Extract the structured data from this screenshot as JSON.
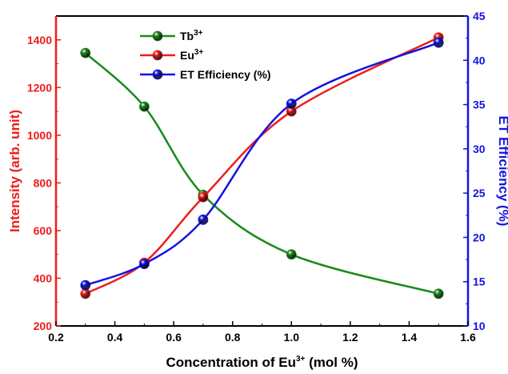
{
  "chart_data": {
    "type": "line",
    "x": [
      0.3,
      0.5,
      0.7,
      1.0,
      1.5
    ],
    "xlim": [
      0.2,
      1.6
    ],
    "x_ticks": [
      "0.2",
      "0.4",
      "0.6",
      "0.8",
      "1.0",
      "1.2",
      "1.4",
      "1.6"
    ],
    "xlabel_main": "Concentration of Eu",
    "xlabel_sup": "3+",
    "xlabel_tail": " (mol %)",
    "ylabel_left": "Intensity (arb. unit)",
    "ylim_left": [
      200,
      1500
    ],
    "y_ticks_left": [
      "200",
      "400",
      "600",
      "800",
      "1000",
      "1200",
      "1400"
    ],
    "ylabel_right": "ET Efficiency (%)",
    "ylim_right": [
      10,
      45
    ],
    "y_ticks_right": [
      "10",
      "15",
      "20",
      "25",
      "30",
      "35",
      "40",
      "45"
    ],
    "legend_position": "top-left",
    "series": [
      {
        "name": "Tb",
        "name_sup": "3+",
        "axis": "left",
        "color": "#1a8a1a",
        "values": [
          1345,
          1120,
          750,
          500,
          335
        ]
      },
      {
        "name": "Eu",
        "name_sup": "3+",
        "axis": "left",
        "color": "#ee1c1c",
        "values": [
          335,
          465,
          740,
          1100,
          1410
        ]
      },
      {
        "name": "ET Efficiency (%)",
        "name_sup": "",
        "axis": "right",
        "color": "#1414e0",
        "values": [
          14.6,
          17.0,
          22.0,
          35.1,
          42.0
        ]
      }
    ],
    "left_axis_color": "#ee1c1c",
    "right_axis_color": "#1414e0"
  }
}
